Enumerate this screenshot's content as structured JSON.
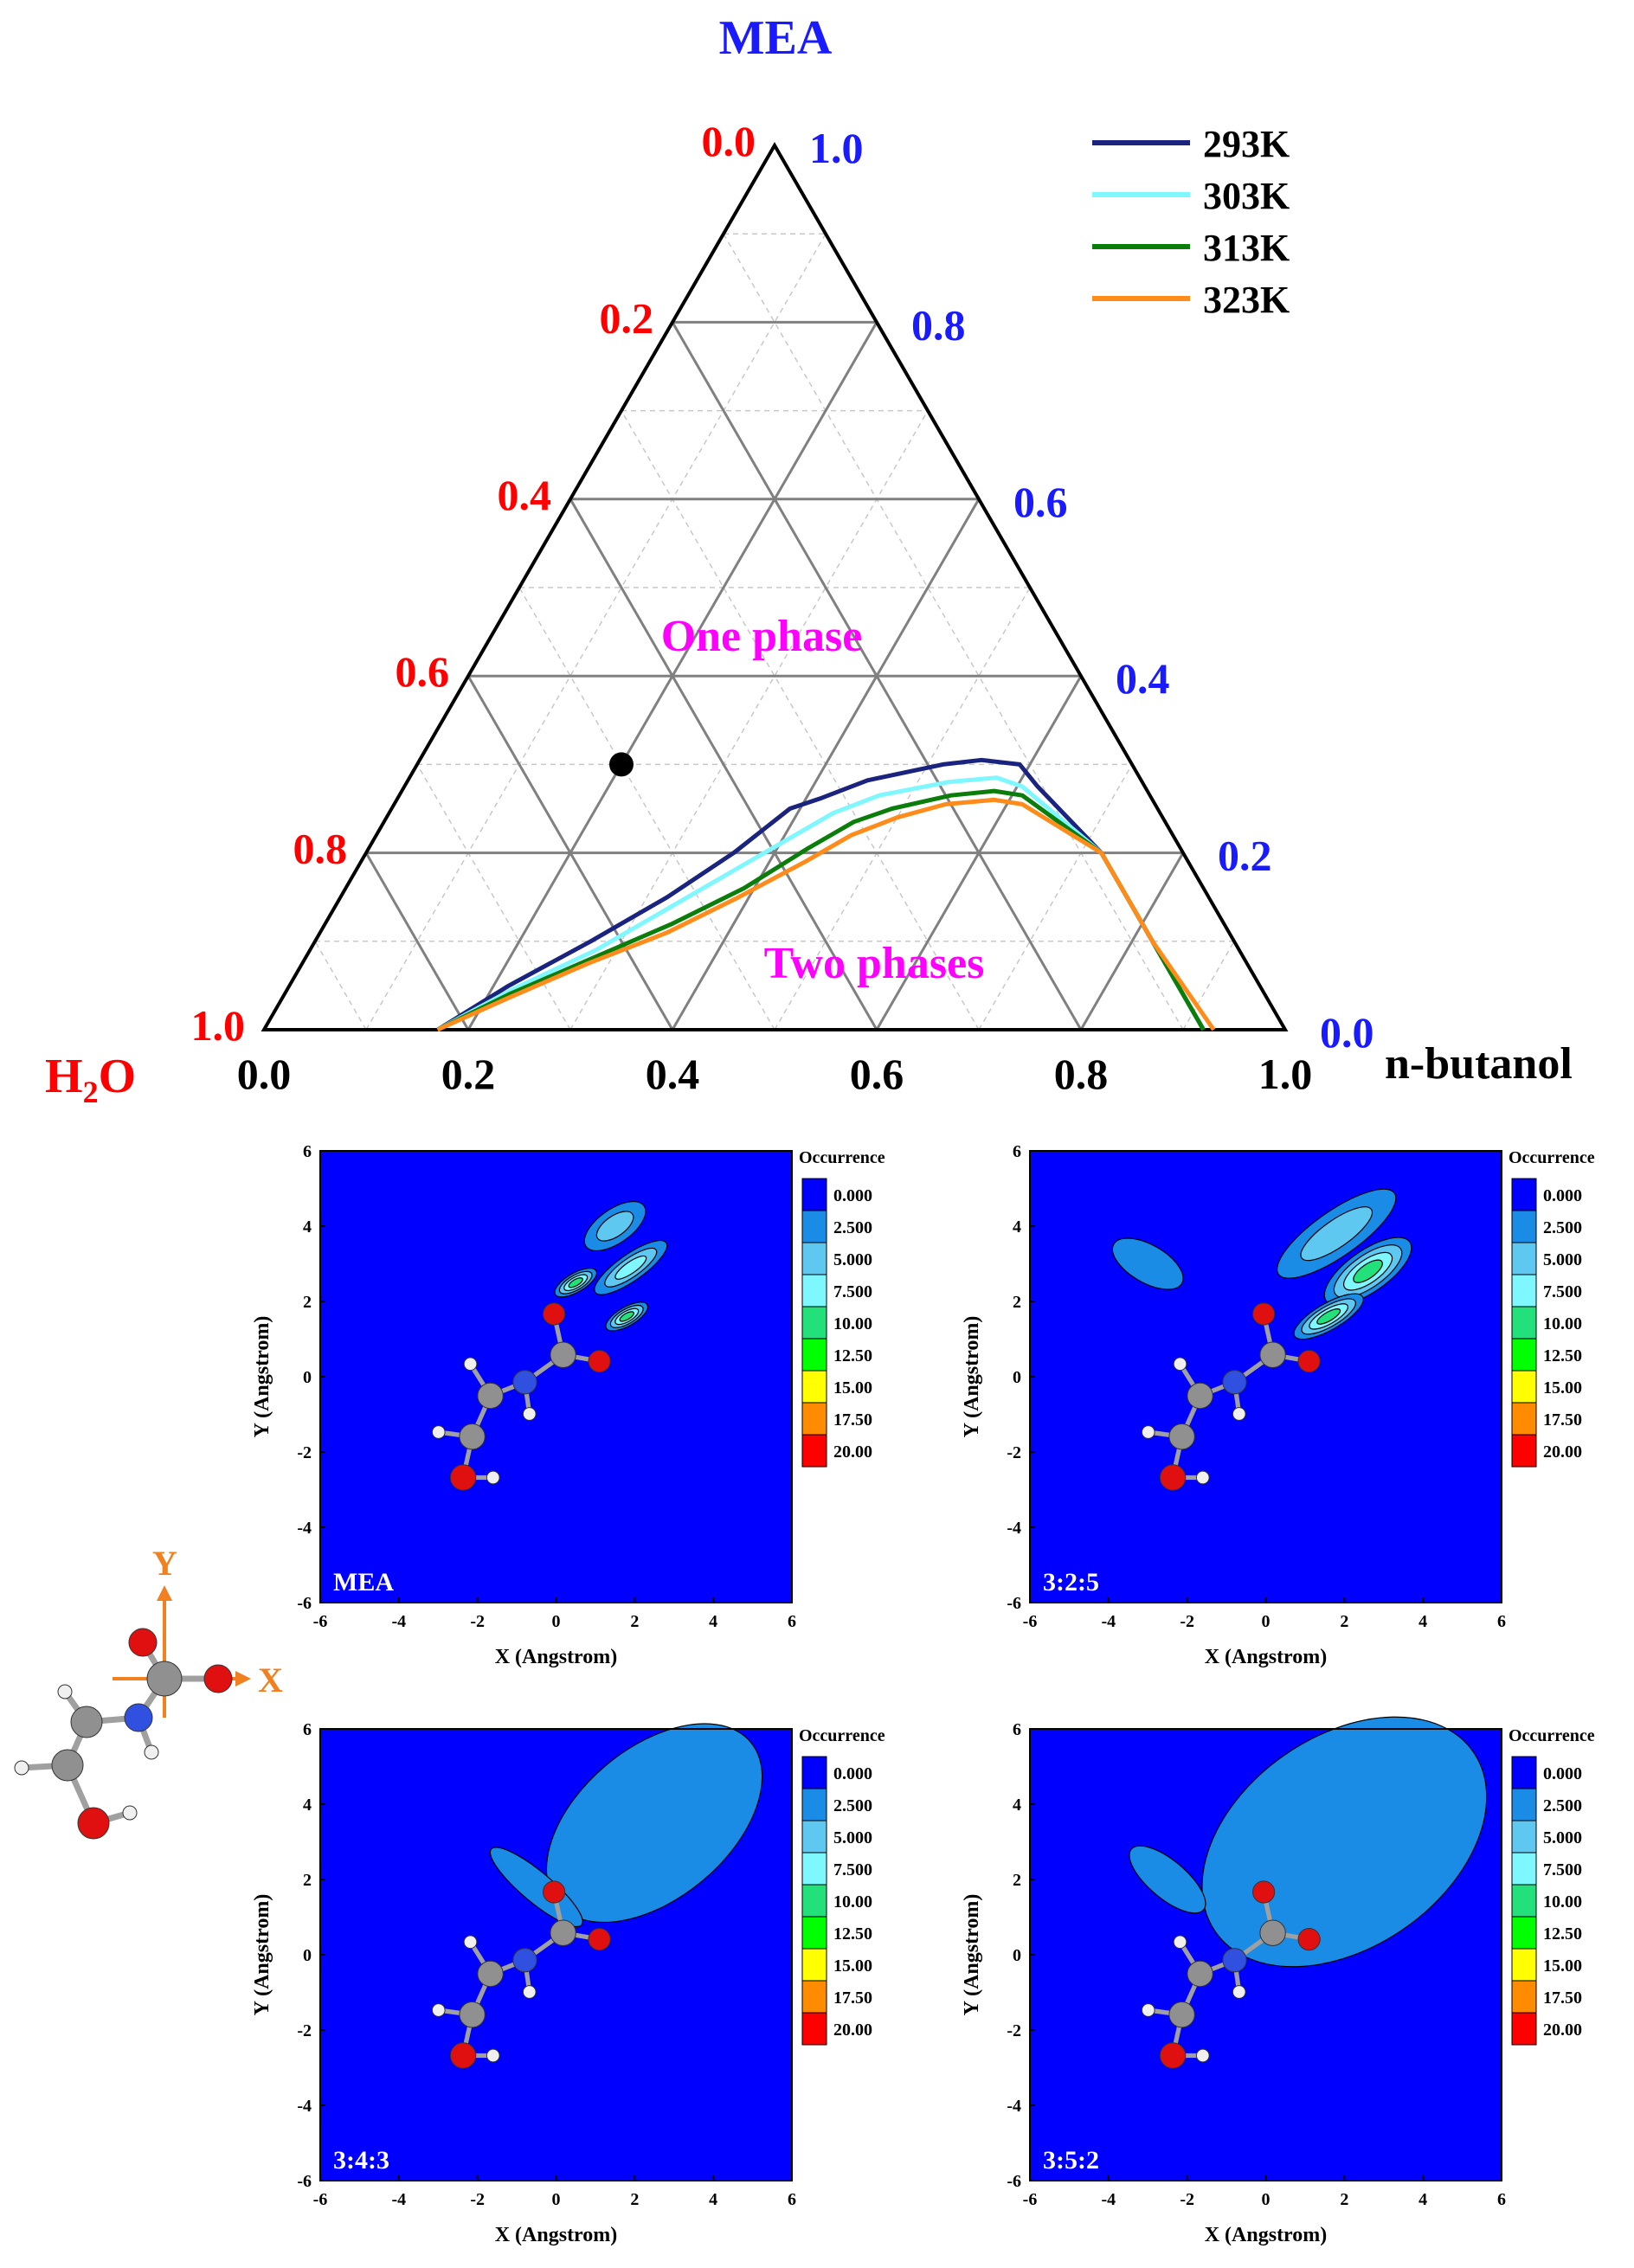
{
  "chart_data": [
    {
      "type": "line",
      "subtype": "ternary",
      "vertices": {
        "top": "MEA",
        "left": "H2O",
        "right": "n-butanol"
      },
      "h2o_axis": {
        "label_main": "H",
        "label_sub": "2",
        "label_tail": "O",
        "ticks": [
          "0.0",
          "0.2",
          "0.4",
          "0.6",
          "0.8",
          "1.0"
        ]
      },
      "mea_axis": {
        "ticks": [
          "1.0",
          "0.8",
          "0.6",
          "0.4",
          "0.2",
          "0.0"
        ]
      },
      "butanol_axis": {
        "label": "n-butanol",
        "ticks": [
          "0.0",
          "0.2",
          "0.4",
          "0.6",
          "0.8",
          "1.0"
        ]
      },
      "region_labels": {
        "one_phase": "One phase",
        "two_phases": "Two phases"
      },
      "grid": true,
      "legend": {
        "position": "top-right"
      },
      "point": {
        "mea": 0.3,
        "butanol": 0.2,
        "h2o": 0.5,
        "color": "#000000"
      },
      "series": [
        {
          "name": "293K",
          "color": "#1a237e",
          "points": [
            [
              0,
              0.17
            ],
            [
              0.05,
              0.215
            ],
            [
              0.1,
              0.27
            ],
            [
              0.15,
              0.32
            ],
            [
              0.2,
              0.36
            ],
            [
              0.25,
              0.39
            ],
            [
              0.262,
              0.415
            ],
            [
              0.282,
              0.45
            ],
            [
              0.3,
              0.515
            ],
            [
              0.305,
              0.55
            ],
            [
              0.3,
              0.59
            ],
            [
              0.275,
              0.62
            ],
            [
              0.2,
              0.72
            ],
            [
              0.1,
              0.82
            ],
            [
              0,
              0.92
            ]
          ]
        },
        {
          "name": "303K",
          "color": "#7ff7ff",
          "points": [
            [
              0,
              0.17
            ],
            [
              0.045,
              0.22
            ],
            [
              0.09,
              0.28
            ],
            [
              0.14,
              0.33
            ],
            [
              0.18,
              0.37
            ],
            [
              0.22,
              0.41
            ],
            [
              0.245,
              0.435
            ],
            [
              0.265,
              0.47
            ],
            [
              0.28,
              0.53
            ],
            [
              0.285,
              0.575
            ],
            [
              0.275,
              0.605
            ],
            [
              0.2,
              0.72
            ],
            [
              0.1,
              0.82
            ],
            [
              0,
              0.92
            ]
          ]
        },
        {
          "name": "313K",
          "color": "#0a7d0a",
          "points": [
            [
              0,
              0.17
            ],
            [
              0.04,
              0.22
            ],
            [
              0.08,
              0.28
            ],
            [
              0.12,
              0.34
            ],
            [
              0.16,
              0.39
            ],
            [
              0.205,
              0.43
            ],
            [
              0.235,
              0.46
            ],
            [
              0.25,
              0.49
            ],
            [
              0.265,
              0.54
            ],
            [
              0.27,
              0.58
            ],
            [
              0.265,
              0.61
            ],
            [
              0.2,
              0.72
            ],
            [
              0.1,
              0.82
            ],
            [
              0,
              0.92
            ]
          ]
        },
        {
          "name": "323K",
          "color": "#ff8c1a",
          "points": [
            [
              0,
              0.17
            ],
            [
              0.035,
              0.22
            ],
            [
              0.075,
              0.28
            ],
            [
              0.11,
              0.34
            ],
            [
              0.15,
              0.39
            ],
            [
              0.19,
              0.435
            ],
            [
              0.22,
              0.465
            ],
            [
              0.24,
              0.5
            ],
            [
              0.255,
              0.54
            ],
            [
              0.26,
              0.585
            ],
            [
              0.255,
              0.615
            ],
            [
              0.2,
              0.72
            ],
            [
              0.1,
              0.82
            ],
            [
              0,
              0.93
            ]
          ]
        }
      ]
    },
    {
      "type": "heatmap",
      "panel_label": "MEA",
      "xlabel": "X (Angstrom)",
      "ylabel": "Y (Angstrom)",
      "xlim": [
        -6,
        6
      ],
      "ylim": [
        -6,
        6
      ],
      "xticks": [
        "-6",
        "-4",
        "-2",
        "0",
        "2",
        "4",
        "6"
      ],
      "yticks": [
        "-6",
        "-4",
        "-2",
        "0",
        "2",
        "4",
        "6"
      ],
      "peaks": [
        [
          1.5,
          4,
          0.9,
          0.45,
          -35,
          7
        ],
        [
          1.9,
          2.9,
          1.1,
          0.35,
          -35,
          9
        ],
        [
          0.5,
          2.5,
          0.6,
          0.25,
          -30,
          11
        ],
        [
          1.8,
          1.6,
          0.6,
          0.25,
          -30,
          10
        ]
      ]
    },
    {
      "type": "heatmap",
      "panel_label": "3:2:5",
      "xlabel": "X (Angstrom)",
      "ylabel": "Y (Angstrom)",
      "xlim": [
        -6,
        6
      ],
      "ylim": [
        -6,
        6
      ],
      "xticks": [
        "-6",
        "-4",
        "-2",
        "0",
        "2",
        "4",
        "6"
      ],
      "yticks": [
        "-6",
        "-4",
        "-2",
        "0",
        "2",
        "4",
        "6"
      ],
      "peaks": [
        [
          1.8,
          3.8,
          1.8,
          0.6,
          -35,
          7
        ],
        [
          2.6,
          2.8,
          1.3,
          0.55,
          -35,
          11
        ],
        [
          1.6,
          1.6,
          1,
          0.35,
          -30,
          10
        ],
        [
          -3,
          3,
          1,
          0.5,
          30,
          4
        ]
      ]
    },
    {
      "type": "heatmap",
      "panel_label": "3:4:3",
      "xlabel": "X (Angstrom)",
      "ylabel": "Y (Angstrom)",
      "xlim": [
        -6,
        6
      ],
      "ylim": [
        -6,
        6
      ],
      "xticks": [
        "-6",
        "-4",
        "-2",
        "0",
        "2",
        "4",
        "6"
      ],
      "yticks": [
        "-6",
        "-4",
        "-2",
        "0",
        "2",
        "4",
        "6"
      ],
      "peaks": [
        [
          2.3,
          3.4,
          2.2,
          0.9,
          -35,
          9
        ],
        [
          1.6,
          2.9,
          1,
          0.35,
          -35,
          19
        ],
        [
          1.2,
          2,
          1.3,
          0.4,
          -35,
          18
        ],
        [
          2.5,
          3.5,
          3.2,
          2,
          -40,
          4
        ],
        [
          -0.5,
          1.8,
          1.5,
          0.4,
          40,
          4
        ]
      ]
    },
    {
      "type": "heatmap",
      "panel_label": "3:5:2",
      "xlabel": "X (Angstrom)",
      "ylabel": "Y (Angstrom)",
      "xlim": [
        -6,
        6
      ],
      "ylim": [
        -6,
        6
      ],
      "xticks": [
        "-6",
        "-4",
        "-2",
        "0",
        "2",
        "4",
        "6"
      ],
      "yticks": [
        "-6",
        "-4",
        "-2",
        "0",
        "2",
        "4",
        "6"
      ],
      "peaks": [
        [
          1.8,
          3.6,
          2.4,
          1.0,
          -30,
          9
        ],
        [
          1.9,
          3,
          1,
          0.4,
          -35,
          17
        ],
        [
          1.2,
          2,
          1.2,
          0.35,
          -30,
          14
        ],
        [
          2,
          3,
          4,
          2.8,
          -35,
          4
        ],
        [
          -2.5,
          2,
          1.2,
          0.5,
          40,
          4
        ]
      ]
    }
  ],
  "colorbar": {
    "title": "Occurrence",
    "levels": [
      "0.000",
      "2.500",
      "5.000",
      "7.500",
      "10.00",
      "12.50",
      "15.00",
      "17.50",
      "20.00"
    ],
    "colors": [
      "#0000ff",
      "#1a8ce6",
      "#5fc8f0",
      "#7ff7ff",
      "#22e07a",
      "#00ff00",
      "#ffff00",
      "#ff8c00",
      "#ff0000"
    ]
  },
  "axis_molecule_icon": {
    "x_label": "X",
    "y_label": "Y",
    "color": "#f08020"
  },
  "colors": {
    "h2o": "#ff0000",
    "mea": "#1a1aff",
    "butanol": "#000000",
    "region": "#ff00ff",
    "grid": "#808080"
  }
}
